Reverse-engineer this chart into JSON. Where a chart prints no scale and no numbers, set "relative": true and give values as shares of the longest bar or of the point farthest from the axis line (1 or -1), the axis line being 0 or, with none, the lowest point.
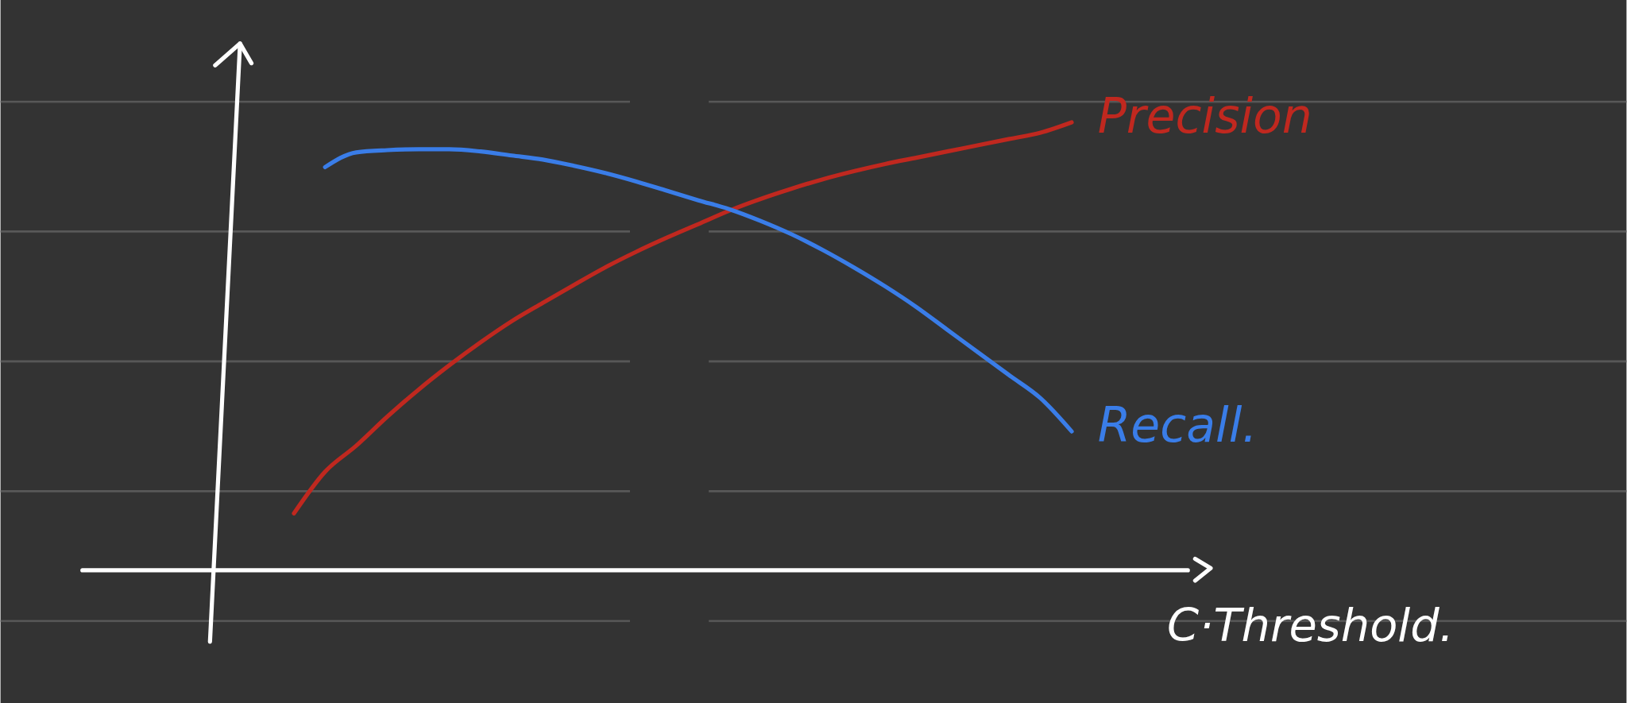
{
  "chart_data": {
    "type": "line",
    "relative": true,
    "xlabel": "C·Threshold.",
    "categories": [
      null,
      null,
      null,
      null,
      null,
      null,
      null,
      null,
      null,
      null,
      null,
      null,
      null,
      null,
      null,
      null,
      null,
      null,
      null,
      null,
      null,
      null,
      null,
      null,
      null,
      null
    ],
    "series": [
      {
        "name": "Precision",
        "color": "#c0281f",
        "values": [
          0.127,
          0.22,
          0.278,
          0.343,
          0.403,
          0.458,
          0.509,
          0.556,
          0.597,
          0.637,
          0.676,
          0.711,
          0.743,
          0.773,
          0.803,
          0.829,
          0.852,
          0.873,
          0.891,
          0.907,
          0.921,
          0.935,
          0.949,
          0.963,
          0.977,
          1.0
        ]
      },
      {
        "name": "Recall.",
        "color": "#3a7de8",
        "values": [
          null,
          0.9,
          0.933,
          0.938,
          0.94,
          0.94,
          0.935,
          0.926,
          0.917,
          0.903,
          0.887,
          0.868,
          0.847,
          0.826,
          0.806,
          0.78,
          0.75,
          0.715,
          0.676,
          0.634,
          0.588,
          0.537,
          0.486,
          0.435,
          0.384,
          0.31
        ]
      }
    ],
    "marker": "none",
    "line_style": "solid"
  }
}
